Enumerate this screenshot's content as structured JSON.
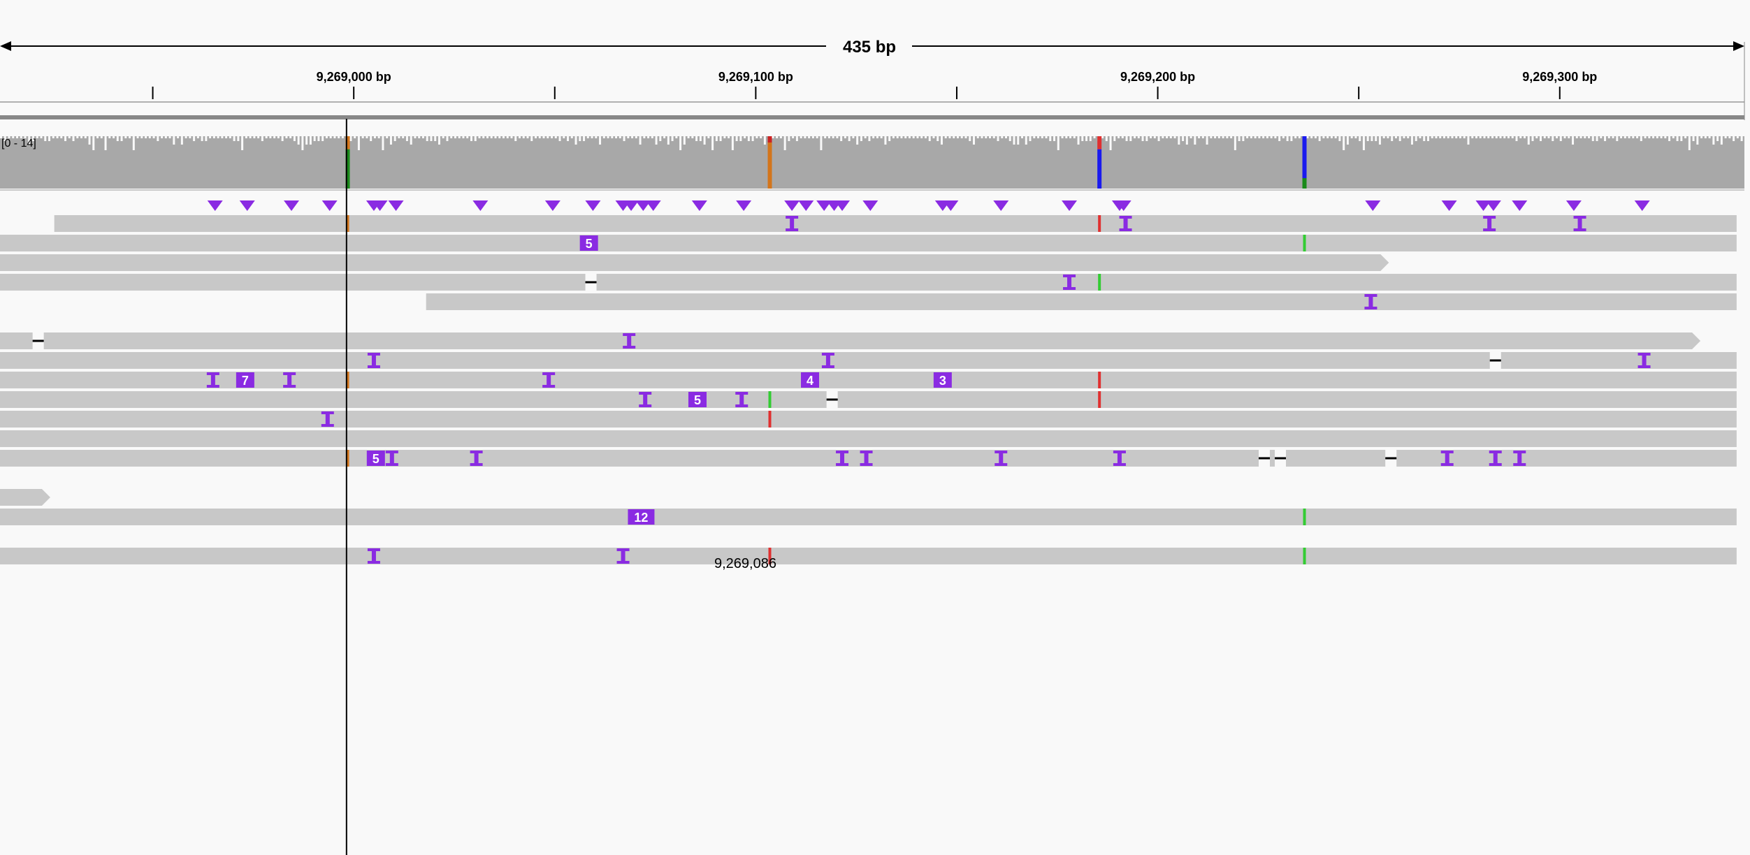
{
  "ruler": {
    "span_label": "435 bp",
    "view_start_bp": 9268912,
    "view_end_bp": 9269347,
    "tick_labels": [
      {
        "bp": 9269000,
        "label": "9,269,000 bp"
      },
      {
        "bp": 9269100,
        "label": "9,269,100 bp"
      },
      {
        "bp": 9269200,
        "label": "9,269,200 bp"
      },
      {
        "bp": 9269300,
        "label": "9,269,300 bp"
      }
    ],
    "minor_ticks_bp": [
      8950,
      9050,
      9150,
      9250
    ]
  },
  "coverage": {
    "range_label": "[0 - 14]",
    "max": 14,
    "colored_bars": [
      {
        "bp_offset": 86.5,
        "segments": [
          {
            "color": "#d4751b",
            "frac": 0.25
          },
          {
            "color": "#1a8a1a",
            "frac": 0.75
          }
        ]
      },
      {
        "bp_offset": 191.5,
        "segments": [
          {
            "color": "#cc2222",
            "frac": 0.12
          },
          {
            "color": "#d4751b",
            "frac": 0.88
          }
        ]
      },
      {
        "bp_offset": 273.5,
        "segments": [
          {
            "color": "#e03030",
            "frac": 0.25
          },
          {
            "color": "#1a1aee",
            "frac": 0.75
          }
        ]
      },
      {
        "bp_offset": 324.5,
        "segments": [
          {
            "color": "#1a1aee",
            "frac": 0.8
          },
          {
            "color": "#1a8a1a",
            "frac": 0.2
          }
        ]
      }
    ]
  },
  "insertion_markers_bp": [
    53.5,
    61.5,
    72.5,
    82,
    93,
    94.5,
    98.5,
    119.5,
    137.5,
    147.5,
    155,
    157,
    160,
    162.5,
    174,
    185,
    197,
    200.5,
    205,
    207.5,
    209.5,
    216.5,
    234.5,
    236.5,
    249,
    266,
    278.5,
    279.5,
    341.5,
    360.5,
    369,
    371.5,
    378,
    391.5,
    408.5
  ],
  "locus_readout": "9,269,086",
  "cursor_bp": 86.2,
  "colors": {
    "read": "#c8c8c8",
    "insertion": "#8a2be2",
    "coverage": "#a8a8a8",
    "mismatch_A": "#33cc33",
    "mismatch_T": "#e03030",
    "mismatch_G": "#d4751b",
    "mismatch_C": "#1a1aee"
  },
  "reads": [
    {
      "row": 0,
      "start": 13.5,
      "end": 432,
      "arrow": "none",
      "ins": [
        {
          "bp": 197
        },
        {
          "bp": 280
        },
        {
          "bp": 370.5
        },
        {
          "bp": 393
        }
      ],
      "mm": [
        {
          "bp": 86.5,
          "color": "#d4751b"
        },
        {
          "bp": 273.5,
          "color": "#e03030"
        }
      ],
      "del": []
    },
    {
      "row": 1,
      "start": 0,
      "end": 432,
      "arrow": "none",
      "ins": [
        {
          "bp": 146.5,
          "label": "5"
        }
      ],
      "mm": [
        {
          "bp": 324.5,
          "color": "#33cc33"
        }
      ],
      "del": []
    },
    {
      "row": 2,
      "start": 0,
      "end": 345.5,
      "arrow": "right",
      "ins": [],
      "mm": [],
      "del": []
    },
    {
      "row": 3,
      "start": 0,
      "end": 432,
      "arrow": "none",
      "ins": [
        {
          "bp": 266
        }
      ],
      "mm": [
        {
          "bp": 273.5,
          "color": "#33cc33"
        }
      ],
      "del": [
        {
          "bp": 147
        }
      ]
    },
    {
      "row": 4,
      "start": 106,
      "end": 432,
      "arrow": "none",
      "ins": [
        {
          "bp": 341
        }
      ],
      "mm": [],
      "del": []
    },
    {
      "row": 6,
      "start": 0,
      "end": 423,
      "arrow": "right",
      "ins": [
        {
          "bp": 156.5
        }
      ],
      "mm": [],
      "del": [
        {
          "bp": 9.5
        }
      ]
    },
    {
      "row": 7,
      "start": 0,
      "end": 432,
      "arrow": "none",
      "ins": [
        {
          "bp": 93
        },
        {
          "bp": 206
        },
        {
          "bp": 409
        }
      ],
      "mm": [],
      "del": [
        {
          "bp": 372
        }
      ]
    },
    {
      "row": 8,
      "start": 0,
      "end": 432,
      "arrow": "none",
      "ins": [
        {
          "bp": 53
        },
        {
          "bp": 61,
          "label": "7"
        },
        {
          "bp": 72
        },
        {
          "bp": 136.5
        },
        {
          "bp": 201.5,
          "label": "4"
        },
        {
          "bp": 234.5,
          "label": "3"
        }
      ],
      "mm": [
        {
          "bp": 86.5,
          "color": "#d4751b"
        },
        {
          "bp": 273.5,
          "color": "#e03030"
        }
      ],
      "del": []
    },
    {
      "row": 9,
      "start": 0,
      "end": 432,
      "arrow": "none",
      "ins": [
        {
          "bp": 160.5
        },
        {
          "bp": 173.5,
          "label": "5"
        },
        {
          "bp": 184.5
        }
      ],
      "mm": [
        {
          "bp": 191.5,
          "color": "#33cc33"
        },
        {
          "bp": 273.5,
          "color": "#e03030"
        }
      ],
      "del": [
        {
          "bp": 207
        }
      ]
    },
    {
      "row": 10,
      "start": 0,
      "end": 432,
      "arrow": "none",
      "ins": [
        {
          "bp": 81.5
        }
      ],
      "mm": [
        {
          "bp": 191.5,
          "color": "#e03030"
        }
      ],
      "del": []
    },
    {
      "row": 11,
      "start": 0,
      "end": 432,
      "arrow": "none",
      "ins": [],
      "mm": [],
      "del": []
    },
    {
      "row": 12,
      "start": 0,
      "end": 432,
      "arrow": "none",
      "ins": [
        {
          "bp": 93.5,
          "label": "5"
        },
        {
          "bp": 97.5
        },
        {
          "bp": 118.5
        },
        {
          "bp": 209.5
        },
        {
          "bp": 215.5
        },
        {
          "bp": 249
        },
        {
          "bp": 278.5
        },
        {
          "bp": 360
        },
        {
          "bp": 372
        },
        {
          "bp": 378
        }
      ],
      "mm": [
        {
          "bp": 86.5,
          "color": "#d4751b"
        }
      ],
      "del": [
        {
          "bp": 314.5
        },
        {
          "bp": 318.5
        },
        {
          "bp": 346
        }
      ]
    },
    {
      "row": 14,
      "start": 0,
      "end": 12.5,
      "arrow": "right",
      "ins": [],
      "mm": [],
      "del": []
    },
    {
      "row": 15,
      "start": 0,
      "end": 432,
      "arrow": "none",
      "ins": [
        {
          "bp": 159.5,
          "label": "12"
        }
      ],
      "mm": [
        {
          "bp": 324.5,
          "color": "#33cc33"
        }
      ],
      "del": []
    },
    {
      "row": 17,
      "start": 0,
      "end": 432,
      "arrow": "none",
      "ins": [
        {
          "bp": 93
        },
        {
          "bp": 155
        }
      ],
      "mm": [
        {
          "bp": 191.5,
          "color": "#e03030"
        },
        {
          "bp": 324.5,
          "color": "#33cc33"
        }
      ],
      "del": []
    }
  ]
}
